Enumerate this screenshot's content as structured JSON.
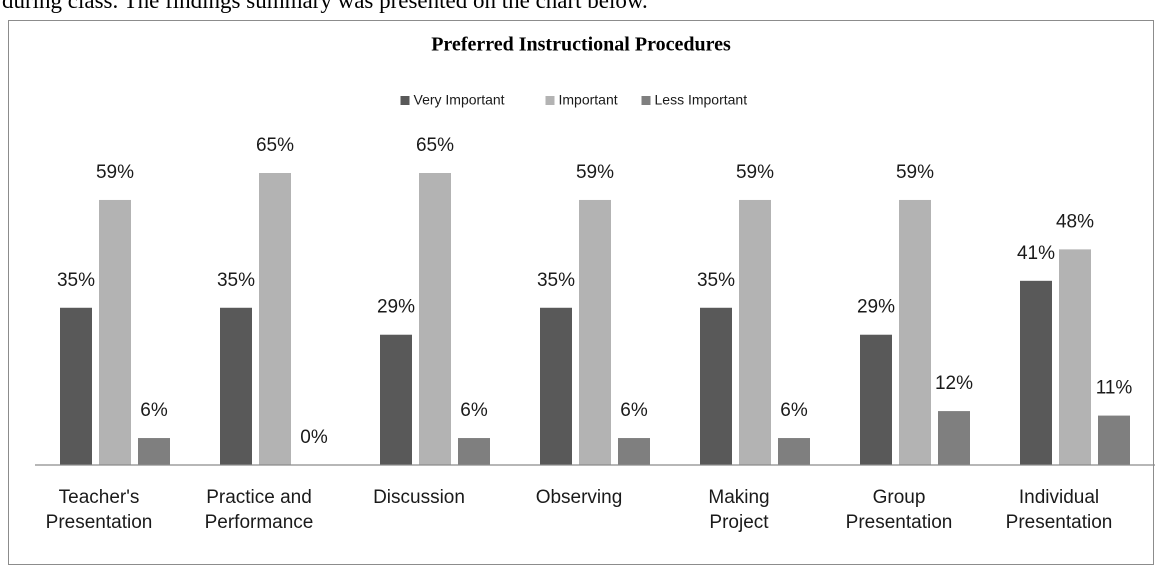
{
  "document_text": "during class. The findings summary was presented on the chart below.",
  "chart_data": {
    "type": "bar",
    "title": "Preferred  Instructional Procedures",
    "categories": [
      "Teacher's\nPresentation",
      "Practice and\nPerformance",
      "Discussion",
      "Observing",
      "Making\nProject",
      "Group\nPresentation",
      "Individual\nPresentation"
    ],
    "series": [
      {
        "name": "Very Important",
        "color": "#595959",
        "values": [
          35,
          35,
          29,
          35,
          35,
          29,
          41
        ],
        "value_labels": [
          "35%",
          "35%",
          "29%",
          "35%",
          "35%",
          "29%",
          "41%"
        ]
      },
      {
        "name": "Important",
        "color": "#b3b3b3",
        "values": [
          59,
          65,
          65,
          59,
          59,
          59,
          48
        ],
        "value_labels": [
          "59%",
          "65%",
          "65%",
          "59%",
          "59%",
          "59%",
          "48%"
        ]
      },
      {
        "name": "Less Important",
        "color": "#7f7f7f",
        "values": [
          6,
          0,
          6,
          6,
          6,
          12,
          11
        ],
        "value_labels": [
          "6%",
          "0%",
          "6%",
          "6%",
          "6%",
          "12%",
          "11%"
        ]
      }
    ],
    "ylim": [
      0,
      65
    ],
    "legend": "top"
  }
}
